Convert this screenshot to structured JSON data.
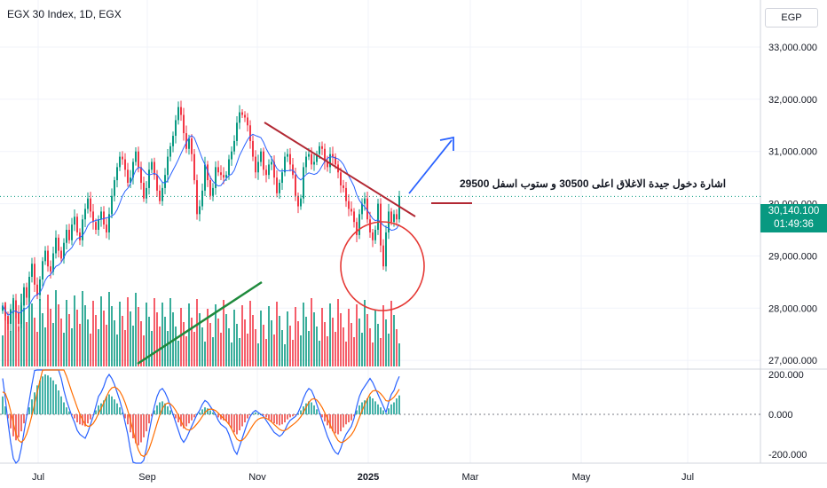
{
  "header": {
    "title": "EGX 30 Index, 1D, EGX",
    "currency": "EGP"
  },
  "last_price": {
    "value": "30,140.100",
    "countdown": "01:49:36"
  },
  "annotation": {
    "text": "اشارة دخول جيدة الاغلاق اعلى 30500 و ستوب اسفل 29500"
  },
  "colors": {
    "up": "#089981",
    "down": "#f23645",
    "ma": "#2962ff",
    "macd_signal": "#ff6d00",
    "trend_red": "#b22833",
    "trend_green": "#1e8a3c",
    "arrow": "#2962ff"
  },
  "chart_data": {
    "type": "candlestick",
    "price_axis": {
      "ticks": [
        "33,000.000",
        "32,000.000",
        "31,000.000",
        "30,000.000",
        "29,000.000",
        "28,000.000",
        "27,000.000"
      ],
      "ylim": [
        26850,
        33900
      ]
    },
    "time_axis": {
      "labels": [
        "Jul",
        "Sep",
        "Nov",
        "2025",
        "Mar",
        "May",
        "Jul"
      ]
    },
    "macd_axis": {
      "ticks": [
        "200.000",
        "0.000",
        "-200.000"
      ]
    },
    "series": {
      "close": [
        28050,
        27850,
        27700,
        27980,
        28150,
        27920,
        27700,
        28050,
        28400,
        28200,
        28600,
        28850,
        28450,
        28250,
        28550,
        28900,
        29100,
        28800,
        28700,
        29050,
        29350,
        29100,
        28950,
        29250,
        29500,
        29300,
        29600,
        29750,
        29450,
        29300,
        29700,
        29900,
        30100,
        29850,
        29650,
        29500,
        29700,
        29850,
        29600,
        29450,
        29800,
        30150,
        30450,
        30700,
        30900,
        30850,
        30650,
        30400,
        30500,
        30800,
        31000,
        30700,
        30400,
        30100,
        30300,
        30650,
        30800,
        30550,
        30250,
        30050,
        30300,
        30550,
        30900,
        31100,
        31300,
        31600,
        31850,
        31700,
        31350,
        31050,
        31250,
        30950,
        30450,
        29800,
        29950,
        30250,
        30750,
        30450,
        30150,
        30300,
        30700,
        30600,
        30550,
        30500,
        30550,
        30850,
        31000,
        31200,
        31550,
        31750,
        31700,
        31650,
        31500,
        31200,
        30900,
        30600,
        30800,
        31000,
        30650,
        30550,
        30750,
        30800,
        30500,
        30200,
        30400,
        30600,
        30900,
        30950,
        30750,
        30550,
        30150,
        29950,
        30100,
        30700,
        30900,
        30950,
        30750,
        30800,
        30950,
        31100,
        31050,
        30800,
        30700,
        30950,
        30900,
        30750,
        30600,
        30350,
        30300,
        30050,
        29900,
        29850,
        29650,
        29400,
        29800,
        30000,
        30100,
        29700,
        29450,
        29300,
        29500,
        30000,
        29200,
        28800,
        29450,
        29850,
        29650,
        29800,
        29700,
        30140
      ],
      "macd": [
        90,
        40,
        -20,
        -70,
        -110,
        -130,
        -115,
        -85,
        -45,
        -5,
        35,
        75,
        110,
        145,
        170,
        190,
        200,
        195,
        185,
        170,
        150,
        120,
        90,
        60,
        35,
        15,
        -5,
        -20,
        -40,
        -50,
        -55,
        -60,
        -45,
        -25,
        -5,
        20,
        45,
        55,
        70,
        90,
        100,
        90,
        75,
        55,
        35,
        10,
        -20,
        -50,
        -90,
        -120,
        -145,
        -155,
        -140,
        -115,
        -85,
        -45,
        -10,
        20,
        45,
        60,
        65,
        55,
        40,
        20,
        0,
        -20,
        -40,
        -60,
        -70,
        -60,
        -45,
        -30,
        -15,
        0,
        10,
        25,
        35,
        30,
        20,
        10,
        0,
        -15,
        -25,
        -30,
        -35,
        -50,
        -70,
        -90,
        -100,
        -80,
        -60,
        -40,
        -20,
        -5,
        5,
        10,
        5,
        0,
        -5,
        -15,
        -25,
        -35,
        -45,
        -50,
        -55,
        -50,
        -40,
        -25,
        -15,
        -10,
        -5,
        5,
        20,
        40,
        55,
        65,
        60,
        45,
        25,
        5,
        -15,
        -35,
        -55,
        -70,
        -85,
        -95,
        -100,
        -85,
        -65,
        -50,
        -40,
        -30,
        -10,
        20,
        45,
        60,
        70,
        80,
        90,
        80,
        65,
        50,
        35,
        20,
        5,
        30,
        50,
        60,
        80,
        95
      ]
    }
  }
}
